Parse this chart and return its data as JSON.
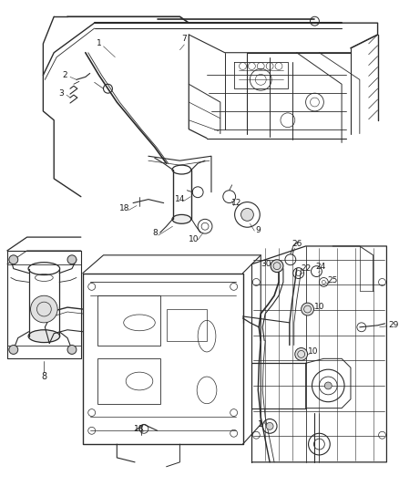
{
  "background_color": "#ffffff",
  "line_color": "#2a2a2a",
  "text_color": "#1a1a1a",
  "figsize": [
    4.38,
    5.33
  ],
  "dpi": 100,
  "font_size": 6.5
}
